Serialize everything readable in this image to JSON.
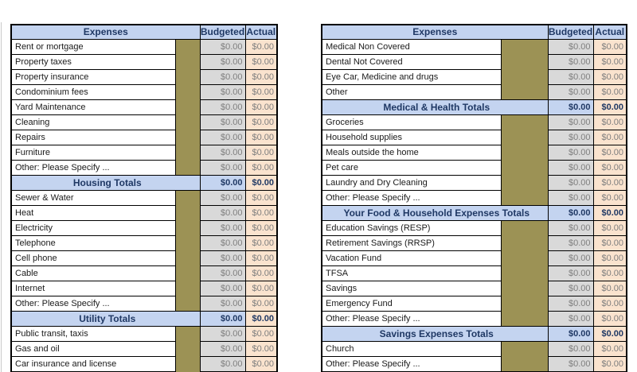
{
  "colors": {
    "header_blue": "#c4d4f0",
    "olive_spacer": "#9C9255",
    "budgeted_gray": "#D9D9D9",
    "actual_peach": "#FAE3CE",
    "navy_text": "#1F3864",
    "money_gray_text": "#7F7F7F",
    "border_black": "#000000"
  },
  "columns": {
    "expenses": "Expenses",
    "budgeted": "Budgeted",
    "actual": "Actual"
  },
  "tables": [
    {
      "id": "left",
      "rows": [
        {
          "type": "item",
          "label": "Rent or mortgage",
          "budgeted": "$0.00",
          "actual": "$0.00"
        },
        {
          "type": "item",
          "label": "Property taxes",
          "budgeted": "$0.00",
          "actual": "$0.00"
        },
        {
          "type": "item",
          "label": "Property insurance",
          "budgeted": "$0.00",
          "actual": "$0.00"
        },
        {
          "type": "item",
          "label": "Condominium fees",
          "budgeted": "$0.00",
          "actual": "$0.00"
        },
        {
          "type": "item",
          "label": "Yard Maintenance",
          "budgeted": "$0.00",
          "actual": "$0.00"
        },
        {
          "type": "item",
          "label": "Cleaning",
          "budgeted": "$0.00",
          "actual": "$0.00"
        },
        {
          "type": "item",
          "label": "Repairs",
          "budgeted": "$0.00",
          "actual": "$0.00"
        },
        {
          "type": "item",
          "label": "Furniture",
          "budgeted": "$0.00",
          "actual": "$0.00"
        },
        {
          "type": "item",
          "label": "Other:  Please Specify ...",
          "budgeted": "$0.00",
          "actual": "$0.00"
        },
        {
          "type": "total",
          "label": "Housing Totals",
          "budgeted": "$0.00",
          "actual": "$0.00"
        },
        {
          "type": "item",
          "label": "Sewer & Water",
          "budgeted": "$0.00",
          "actual": "$0.00"
        },
        {
          "type": "item",
          "label": "Heat",
          "budgeted": "$0.00",
          "actual": "$0.00"
        },
        {
          "type": "item",
          "label": "Electricity",
          "budgeted": "$0.00",
          "actual": "$0.00"
        },
        {
          "type": "item",
          "label": "Telephone",
          "budgeted": "$0.00",
          "actual": "$0.00"
        },
        {
          "type": "item",
          "label": "Cell phone",
          "budgeted": "$0.00",
          "actual": "$0.00"
        },
        {
          "type": "item",
          "label": "Cable",
          "budgeted": "$0.00",
          "actual": "$0.00"
        },
        {
          "type": "item",
          "label": "Internet",
          "budgeted": "$0.00",
          "actual": "$0.00"
        },
        {
          "type": "item",
          "label": "Other:  Please Specify ...",
          "budgeted": "$0.00",
          "actual": "$0.00"
        },
        {
          "type": "total",
          "label": "Utility Totals",
          "budgeted": "$0.00",
          "actual": "$0.00"
        },
        {
          "type": "item",
          "label": "Public transit, taxis",
          "budgeted": "$0.00",
          "actual": "$0.00"
        },
        {
          "type": "item",
          "label": "Gas and oil",
          "budgeted": "$0.00",
          "actual": "$0.00"
        },
        {
          "type": "item",
          "label": "Car insurance and license",
          "budgeted": "$0.00",
          "actual": "$0.00"
        },
        {
          "type": "item",
          "label": "",
          "budgeted": "",
          "actual": ""
        }
      ]
    },
    {
      "id": "right",
      "rows": [
        {
          "type": "item",
          "label": "Medical Non Covered",
          "budgeted": "$0.00",
          "actual": "$0.00"
        },
        {
          "type": "item",
          "label": "Dental Not Covered",
          "budgeted": "$0.00",
          "actual": "$0.00"
        },
        {
          "type": "item",
          "label": "Eye Car, Medicine and drugs",
          "budgeted": "$0.00",
          "actual": "$0.00"
        },
        {
          "type": "item",
          "label": "Other",
          "budgeted": "$0.00",
          "actual": "$0.00"
        },
        {
          "type": "total",
          "label": "Medical & Health Totals",
          "budgeted": "$0.00",
          "actual": "$0.00"
        },
        {
          "type": "item",
          "label": "Groceries",
          "budgeted": "$0.00",
          "actual": "$0.00"
        },
        {
          "type": "item",
          "label": "Household supplies",
          "budgeted": "$0.00",
          "actual": "$0.00"
        },
        {
          "type": "item",
          "label": "Meals outside the home",
          "budgeted": "$0.00",
          "actual": "$0.00"
        },
        {
          "type": "item",
          "label": "Pet care",
          "budgeted": "$0.00",
          "actual": "$0.00"
        },
        {
          "type": "item",
          "label": "Laundry and Dry Cleaning",
          "budgeted": "$0.00",
          "actual": "$0.00"
        },
        {
          "type": "item",
          "label": "Other:  Please Specify ...",
          "budgeted": "$0.00",
          "actual": "$0.00"
        },
        {
          "type": "total",
          "label": "Your Food & Household Expenses Totals",
          "budgeted": "$0.00",
          "actual": "$0.00"
        },
        {
          "type": "item",
          "label": "Education Savings (RESP)",
          "budgeted": "$0.00",
          "actual": "$0.00"
        },
        {
          "type": "item",
          "label": "Retirement Savings (RRSP)",
          "budgeted": "$0.00",
          "actual": "$0.00"
        },
        {
          "type": "item",
          "label": "Vacation Fund",
          "budgeted": "$0.00",
          "actual": "$0.00"
        },
        {
          "type": "item",
          "label": "TFSA",
          "budgeted": "$0.00",
          "actual": "$0.00"
        },
        {
          "type": "item",
          "label": "Savings",
          "budgeted": "$0.00",
          "actual": "$0.00"
        },
        {
          "type": "item",
          "label": "Emergency Fund",
          "budgeted": "$0.00",
          "actual": "$0.00"
        },
        {
          "type": "item",
          "label": "Other:  Please Specify ...",
          "budgeted": "$0.00",
          "actual": "$0.00"
        },
        {
          "type": "total",
          "label": "Savings Expenses Totals",
          "budgeted": "$0.00",
          "actual": "$0.00"
        },
        {
          "type": "item",
          "label": "Church",
          "budgeted": "$0.00",
          "actual": "$0.00"
        },
        {
          "type": "item",
          "label": "Other:  Please Specify ...",
          "budgeted": "$0.00",
          "actual": "$0.00"
        },
        {
          "type": "total",
          "label": "",
          "budgeted": "",
          "actual": ""
        }
      ]
    }
  ]
}
